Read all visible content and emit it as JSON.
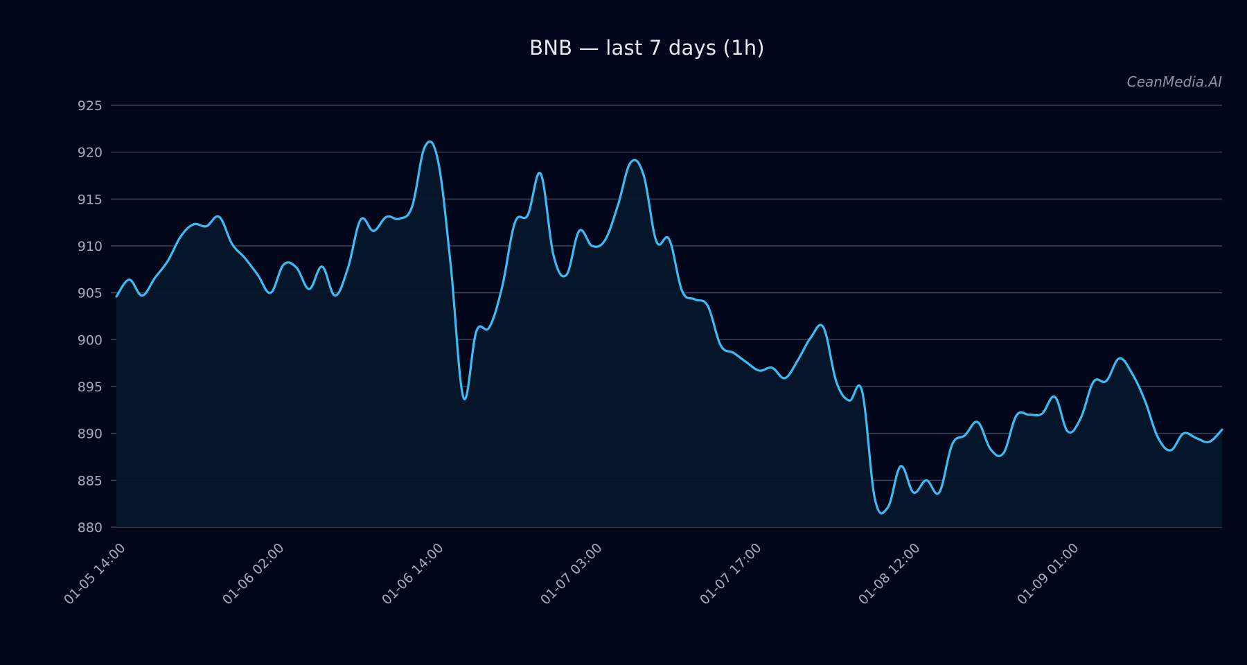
{
  "header": {
    "title": "BNB — last 7 days (1h)",
    "watermark": "CeanMedia.AI"
  },
  "colors": {
    "background": "#02061a",
    "line": "#3bbcf3",
    "area_fill": "#06172b",
    "grid": "#3a4253",
    "tick_label": "#a6abbb"
  },
  "chart_data": {
    "type": "area",
    "title": "BNB — last 7 days (1h)",
    "xlabel": "",
    "ylabel": "",
    "ylim": [
      880,
      925
    ],
    "yticks": [
      880,
      885,
      890,
      895,
      900,
      905,
      910,
      915,
      920,
      925
    ],
    "xtick_labels": [
      "01-05 14:00",
      "01-06 02:00",
      "01-06 14:00",
      "01-07 03:00",
      "01-07 17:00",
      "01-08 12:00",
      "01-09 01:00"
    ],
    "xtick_positions": [
      0,
      12,
      24,
      36,
      48,
      60,
      72
    ],
    "grid": true,
    "legend": "none",
    "series": [
      {
        "name": "BNB",
        "values": [
          904.6,
          906.4,
          904.7,
          906.6,
          908.4,
          911.0,
          912.3,
          912.1,
          913.1,
          910.2,
          908.7,
          906.9,
          905.0,
          908.0,
          907.7,
          905.4,
          907.8,
          904.7,
          907.6,
          912.8,
          911.6,
          913.1,
          912.9,
          914.2,
          920.6,
          919.2,
          908.0,
          893.8,
          900.9,
          901.3,
          905.6,
          912.5,
          913.3,
          917.7,
          909.0,
          906.9,
          911.6,
          910.0,
          910.6,
          914.3,
          918.9,
          917.6,
          910.5,
          910.7,
          905.2,
          904.3,
          903.6,
          899.4,
          898.6,
          897.6,
          896.7,
          897.0,
          895.9,
          897.8,
          900.2,
          901.3,
          895.5,
          893.5,
          894.5,
          883.0,
          882.1,
          886.5,
          883.7,
          885.0,
          883.7,
          888.8,
          889.8,
          891.2,
          888.3,
          887.9,
          891.9,
          892.0,
          892.1,
          893.9,
          890.2,
          891.6,
          895.5,
          895.6,
          898.0,
          896.4,
          893.5,
          889.6,
          888.2,
          890.0,
          889.5,
          889.1,
          890.4
        ]
      }
    ]
  }
}
